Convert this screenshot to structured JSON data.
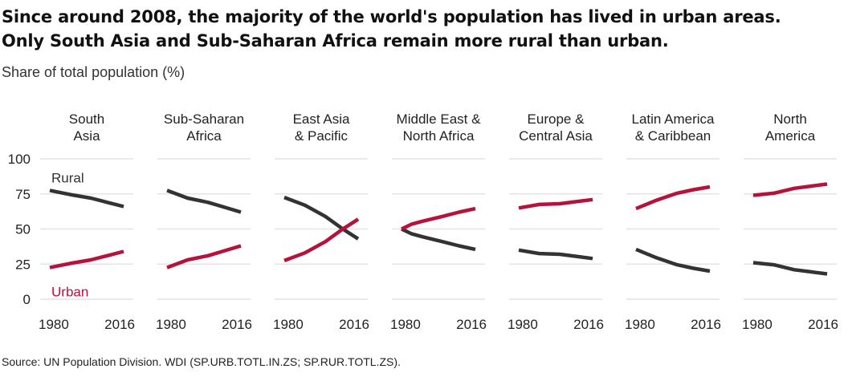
{
  "title_line1": "Since around 2008, the majority of the world's population has lived in urban areas.",
  "title_line2": "Only South Asia and Sub-Saharan Africa remain more rural than urban.",
  "subtitle": "Share of total population (%)",
  "source": "Source: UN Population Division. WDI (SP.URB.TOTL.IN.ZS; SP.RUR.TOTL.ZS).",
  "colors": {
    "urban": "#b5123c",
    "rural": "#333333",
    "grid": "#e4e4e4"
  },
  "chart_data": {
    "type": "line",
    "y_ticks": [
      "100",
      "75",
      "50",
      "25",
      "0"
    ],
    "ylim": [
      0,
      100
    ],
    "x_tick_labels": [
      "1980",
      "2016"
    ],
    "xlim": [
      1980,
      2016
    ],
    "series_labels": {
      "rural": "Rural",
      "urban": "Urban"
    },
    "panels": [
      {
        "label": [
          "South",
          "Asia"
        ],
        "x": [
          1980,
          1990,
          2000,
          2008,
          2016
        ],
        "rural": [
          77.5,
          74.5,
          72,
          69,
          66
        ],
        "urban": [
          22.5,
          25.5,
          28,
          31,
          34
        ]
      },
      {
        "label": [
          "Sub-Saharan",
          "Africa"
        ],
        "x": [
          1980,
          1990,
          2000,
          2008,
          2016
        ],
        "rural": [
          77.5,
          72,
          69,
          65.5,
          62
        ],
        "urban": [
          22.5,
          28,
          31,
          34.5,
          38
        ]
      },
      {
        "label": [
          "East Asia",
          "& Pacific"
        ],
        "x": [
          1980,
          1990,
          2000,
          2008,
          2016
        ],
        "rural": [
          72.5,
          67,
          59,
          50.5,
          43
        ],
        "urban": [
          27.5,
          33,
          41,
          49.5,
          57
        ]
      },
      {
        "label": [
          "Middle East &",
          "North Africa"
        ],
        "x": [
          1980,
          1985,
          1990,
          2000,
          2008,
          2016
        ],
        "rural": [
          50,
          46.5,
          44.5,
          41,
          38,
          35.5
        ],
        "urban": [
          50,
          53.5,
          55.5,
          59,
          62,
          64.5
        ]
      },
      {
        "label": [
          "Europe &",
          "Central Asia"
        ],
        "x": [
          1980,
          1990,
          2000,
          2008,
          2016
        ],
        "rural": [
          35,
          32.5,
          32,
          30.5,
          29
        ],
        "urban": [
          65,
          67.5,
          68,
          69.5,
          71
        ]
      },
      {
        "label": [
          "Latin America",
          "& Caribbean"
        ],
        "x": [
          1980,
          1990,
          2000,
          2008,
          2016
        ],
        "rural": [
          35.5,
          29.5,
          24.5,
          22,
          20
        ],
        "urban": [
          64.5,
          70.5,
          75.5,
          78,
          80
        ]
      },
      {
        "label": [
          "North",
          "America"
        ],
        "x": [
          1980,
          1990,
          2000,
          2008,
          2016
        ],
        "rural": [
          26,
          24.5,
          21,
          19.5,
          18
        ],
        "urban": [
          74,
          75.5,
          79,
          80.5,
          82
        ]
      }
    ]
  }
}
